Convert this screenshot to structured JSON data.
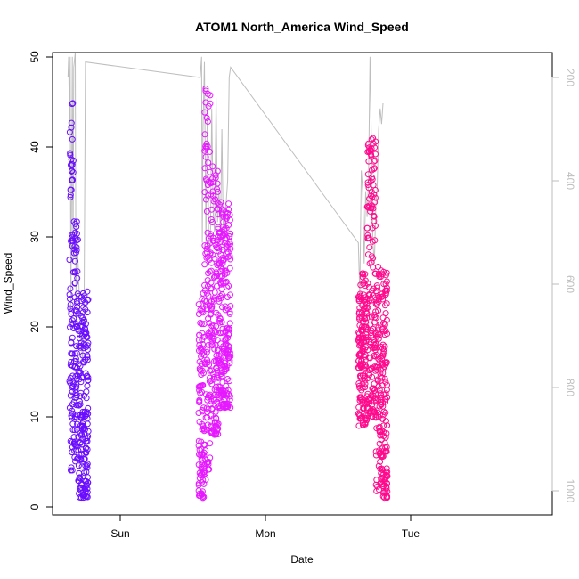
{
  "chart_data": {
    "type": "scatter",
    "title": "ATOM1 North_America Wind_Speed",
    "xlabel": "Date",
    "ylabel": "Wind_Speed",
    "x_unit": "days",
    "x_ticks": [
      {
        "label": "Sun",
        "value": 0
      },
      {
        "label": "Mon",
        "value": 1
      },
      {
        "label": "Tue",
        "value": 2
      }
    ],
    "xlim": [
      -0.4,
      2.95
    ],
    "ylim": [
      0,
      50
    ],
    "y_ticks": [
      0,
      10,
      20,
      30,
      40,
      50
    ],
    "right_axis": {
      "label": "",
      "ticks": [
        200,
        400,
        600,
        800,
        1000
      ],
      "lim": [
        1000,
        200
      ],
      "color": "#bebebe"
    },
    "grid": false,
    "series": [
      {
        "color": "#6a0dff",
        "segments": [
          {
            "x_start": -0.35,
            "x_end": -0.32,
            "y_min": 4,
            "y_max": 45
          },
          {
            "x_start": -0.32,
            "x_end": -0.29,
            "y_min": 5,
            "y_max": 32
          },
          {
            "x_start": -0.29,
            "x_end": -0.22,
            "y_min": 1,
            "y_max": 24
          }
        ]
      },
      {
        "color": "#e619ff",
        "segments": [
          {
            "x_start": 0.54,
            "x_end": 0.58,
            "y_min": 1,
            "y_max": 25
          },
          {
            "x_start": 0.58,
            "x_end": 0.62,
            "y_min": 3,
            "y_max": 48
          },
          {
            "x_start": 0.62,
            "x_end": 0.68,
            "y_min": 8,
            "y_max": 38
          },
          {
            "x_start": 0.68,
            "x_end": 0.76,
            "y_min": 11,
            "y_max": 34
          }
        ]
      },
      {
        "color": "#ff0a8c",
        "segments": [
          {
            "x_start": 1.64,
            "x_end": 1.7,
            "y_min": 9,
            "y_max": 26
          },
          {
            "x_start": 1.7,
            "x_end": 1.76,
            "y_min": 10,
            "y_max": 41
          },
          {
            "x_start": 1.76,
            "x_end": 1.84,
            "y_min": 1,
            "y_max": 27
          }
        ]
      }
    ],
    "pressure_line": [
      [
        -0.36,
        200
      ],
      [
        -0.355,
        160
      ],
      [
        -0.35,
        300
      ],
      [
        -0.345,
        160
      ],
      [
        -0.34,
        650
      ],
      [
        -0.335,
        420
      ],
      [
        -0.33,
        160
      ],
      [
        -0.325,
        560
      ],
      [
        -0.32,
        180
      ],
      [
        -0.31,
        140
      ],
      [
        -0.305,
        640
      ],
      [
        -0.3,
        480
      ],
      [
        -0.29,
        560
      ],
      [
        -0.28,
        640
      ],
      [
        -0.27,
        700
      ],
      [
        -0.26,
        750
      ],
      [
        -0.25,
        680
      ],
      [
        -0.24,
        170
      ],
      [
        0.55,
        200
      ],
      [
        0.56,
        160
      ],
      [
        0.565,
        520
      ],
      [
        0.57,
        300
      ],
      [
        0.58,
        170
      ],
      [
        0.59,
        520
      ],
      [
        0.6,
        240
      ],
      [
        0.61,
        520
      ],
      [
        0.62,
        540
      ],
      [
        0.63,
        260
      ],
      [
        0.64,
        460
      ],
      [
        0.65,
        500
      ],
      [
        0.66,
        240
      ],
      [
        0.67,
        480
      ],
      [
        0.68,
        420
      ],
      [
        0.69,
        500
      ],
      [
        0.7,
        300
      ],
      [
        0.71,
        510
      ],
      [
        0.72,
        480
      ],
      [
        0.74,
        400
      ],
      [
        0.75,
        200
      ],
      [
        0.76,
        180
      ],
      [
        1.64,
        520
      ],
      [
        1.65,
        620
      ],
      [
        1.66,
        380
      ],
      [
        1.67,
        420
      ],
      [
        1.68,
        560
      ],
      [
        1.69,
        420
      ],
      [
        1.7,
        470
      ],
      [
        1.71,
        400
      ],
      [
        1.72,
        160
      ],
      [
        1.73,
        340
      ],
      [
        1.74,
        520
      ],
      [
        1.75,
        560
      ],
      [
        1.76,
        450
      ],
      [
        1.77,
        410
      ],
      [
        1.78,
        300
      ],
      [
        1.79,
        260
      ],
      [
        1.8,
        290
      ],
      [
        1.81,
        250
      ]
    ]
  }
}
